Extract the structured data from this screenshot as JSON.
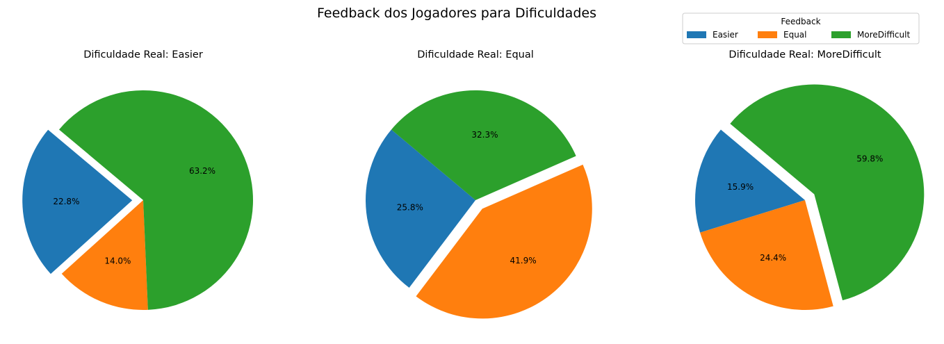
{
  "chart_data": {
    "type": "pie",
    "title": "Feedback dos Jogadores para Dificuldades",
    "legend": {
      "title": "Feedback",
      "placement": "top-right",
      "entries": [
        "Easier",
        "Equal",
        "MoreDifficult"
      ]
    },
    "categories": [
      "Easier",
      "Equal",
      "MoreDifficult"
    ],
    "colors": {
      "Easier": "#1f77b4",
      "Equal": "#ff7f0e",
      "MoreDifficult": "#2ca02c"
    },
    "subplots": [
      {
        "title": "Dificuldade Real: Easier",
        "values": [
          22.8,
          14.0,
          63.2
        ],
        "labels": [
          "22.8%",
          "14.0%",
          "63.2%"
        ],
        "exploded": "Easier"
      },
      {
        "title": "Dificuldade Real: Equal",
        "values": [
          25.8,
          41.9,
          32.3
        ],
        "labels": [
          "25.8%",
          "41.9%",
          "32.3%"
        ],
        "exploded": "Equal"
      },
      {
        "title": "Dificuldade Real: MoreDifficult",
        "values": [
          15.9,
          24.4,
          59.8
        ],
        "labels": [
          "15.9%",
          "24.4%",
          "59.8%"
        ],
        "exploded": "MoreDifficult"
      }
    ]
  }
}
